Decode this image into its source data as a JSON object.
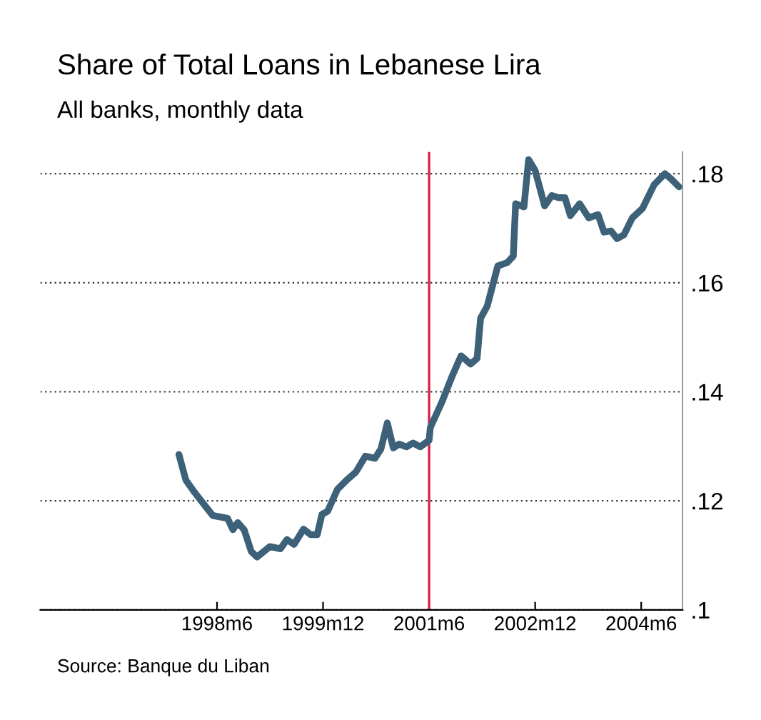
{
  "chart_data": {
    "type": "line",
    "title": "Share of Total Loans in Lebanese Lira",
    "subtitle": "All banks, monthly data",
    "annotations": [
      "Source: Banque du Liban"
    ],
    "xlim": [
      "1995-12",
      "2005-01"
    ],
    "ylim": [
      0.1,
      0.184
    ],
    "xticks": [
      {
        "value": "1998-06",
        "label": "1998m6"
      },
      {
        "value": "1999-12",
        "label": "1999m12"
      },
      {
        "value": "2001-06",
        "label": "2001m6"
      },
      {
        "value": "2002-12",
        "label": "2002m12"
      },
      {
        "value": "2004-06",
        "label": "2004m6"
      }
    ],
    "yticks": [
      {
        "value": 0.1,
        "label": ".1"
      },
      {
        "value": 0.12,
        "label": ".12"
      },
      {
        "value": 0.14,
        "label": ".14"
      },
      {
        "value": 0.16,
        "label": ".16"
      },
      {
        "value": 0.18,
        "label": ".18"
      }
    ],
    "grid": "y",
    "legend": false,
    "marker": "none",
    "line_style": "solid",
    "ref_lines": [
      {
        "axis": "x",
        "value": "2001-06",
        "color": "#d6204e"
      }
    ],
    "series": [
      {
        "color": "#3d6178",
        "x": [
          "1997-11-16",
          "1997-12-22",
          "1998-02-04",
          "1998-03-22",
          "1998-05-10",
          "1998-07-25",
          "1998-08-22",
          "1998-09-16",
          "1998-10-19",
          "1998-11-25",
          "1998-12-25",
          "1999-03-01",
          "1999-04-25",
          "1999-05-28",
          "1999-07-04",
          "1999-08-22",
          "1999-09-28",
          "1999-11-01",
          "1999-11-25",
          "1999-12-25",
          "2000-02-13",
          "2000-04-01",
          "2000-05-19",
          "2000-07-07",
          "2000-08-25",
          "2000-09-25",
          "2000-10-28",
          "2000-11-28",
          "2000-12-28",
          "2001-02-04",
          "2001-03-10",
          "2001-04-16",
          "2001-06-01",
          "2001-06-07",
          "2001-08-07",
          "2001-09-25",
          "2001-11-13",
          "2002-01-01",
          "2002-02-04",
          "2002-02-22",
          "2002-03-28",
          "2002-05-22",
          "2002-07-10",
          "2002-08-10",
          "2002-08-22",
          "2002-10-04",
          "2002-10-28",
          "2002-12-01",
          "2003-01-19",
          "2003-02-25",
          "2003-04-01",
          "2003-05-04",
          "2003-06-01",
          "2003-07-19",
          "2003-09-04",
          "2003-10-22",
          "2003-11-22",
          "2003-12-28",
          "2004-01-28",
          "2004-03-04",
          "2004-04-16",
          "2004-06-07",
          "2004-08-07",
          "2004-10-01",
          "2004-11-01",
          "2004-12-13"
        ],
        "values": [
          0.1285,
          0.1238,
          0.1216,
          0.1195,
          0.1173,
          0.1168,
          0.1147,
          0.116,
          0.1147,
          0.1107,
          0.1097,
          0.1116,
          0.1112,
          0.1129,
          0.112,
          0.1148,
          0.1138,
          0.1138,
          0.1175,
          0.1181,
          0.1221,
          0.1238,
          0.1253,
          0.1282,
          0.1278,
          0.1295,
          0.1343,
          0.1297,
          0.1304,
          0.1299,
          0.1306,
          0.1299,
          0.1311,
          0.1334,
          0.1382,
          0.1426,
          0.1466,
          0.1451,
          0.1461,
          0.1535,
          0.1557,
          0.1631,
          0.1637,
          0.1649,
          0.1745,
          0.1739,
          0.1826,
          0.1806,
          0.1741,
          0.176,
          0.1756,
          0.1756,
          0.1723,
          0.1745,
          0.1719,
          0.1725,
          0.1693,
          0.1695,
          0.1681,
          0.1688,
          0.1719,
          0.1736,
          0.178,
          0.18,
          0.1791,
          0.1776
        ]
      }
    ]
  }
}
